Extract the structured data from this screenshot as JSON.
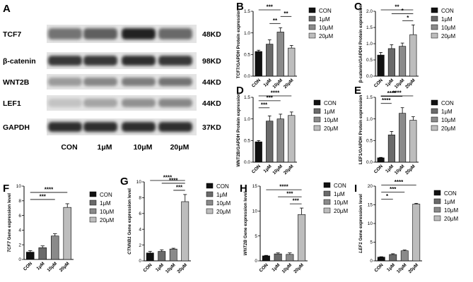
{
  "panel_a": {
    "letter": "A",
    "rows": [
      {
        "label": "TCF7",
        "size": "48KD",
        "intensity": [
          0.55,
          0.65,
          0.95,
          0.6
        ],
        "thickness": 16
      },
      {
        "label": "β-catenin",
        "size": "98KD",
        "intensity": [
          0.85,
          0.85,
          0.9,
          0.85
        ],
        "thickness": 14
      },
      {
        "label": "WNT2B",
        "size": "44KD",
        "intensity": [
          0.35,
          0.45,
          0.5,
          0.55
        ],
        "thickness": 12
      },
      {
        "label": "LEF1",
        "size": "44KD",
        "intensity": [
          0.15,
          0.3,
          0.4,
          0.45
        ],
        "thickness": 12
      },
      {
        "label": "GAPDH",
        "size": "37KD",
        "intensity": [
          0.9,
          0.9,
          0.9,
          0.9
        ],
        "thickness": 14
      }
    ],
    "lanes": [
      "CON",
      "1μM",
      "10μM",
      "20μM"
    ]
  },
  "legend": [
    "CON",
    "1μM",
    "10μM",
    "20μM"
  ],
  "colors": [
    "#111111",
    "#6a6a6a",
    "#8a8a8a",
    "#bdbdbd"
  ],
  "chart_data": [
    {
      "letter": "B",
      "type": "bar",
      "categories": [
        "CON",
        "1μM",
        "10μM",
        "20μM"
      ],
      "values": [
        0.57,
        0.74,
        1.02,
        0.65
      ],
      "errors": [
        0.03,
        0.1,
        0.1,
        0.06
      ],
      "ylabel": "TCF7/GAPDH Protein expression",
      "ylim": [
        0,
        1.5
      ],
      "yticks": [
        "0.0",
        "0.5",
        "1.0",
        "1.5"
      ],
      "sig": [
        {
          "from": 0,
          "to": 2,
          "label": "***"
        },
        {
          "from": 1,
          "to": 2,
          "label": "**"
        },
        {
          "from": 2,
          "to": 3,
          "label": "**"
        }
      ]
    },
    {
      "letter": "C",
      "type": "bar",
      "categories": [
        "CON",
        "1μM",
        "10μM",
        "20μM"
      ],
      "values": [
        0.65,
        0.85,
        0.92,
        1.28
      ],
      "errors": [
        0.08,
        0.12,
        0.1,
        0.3
      ],
      "ylabel": "β-catenin/GAPDH Protein expression",
      "ylim": [
        0,
        2.0
      ],
      "yticks": [
        "0.0",
        "0.5",
        "1.0",
        "1.5",
        "2.0"
      ],
      "sig": [
        {
          "from": 0,
          "to": 3,
          "label": "**"
        },
        {
          "from": 1,
          "to": 3,
          "label": "*"
        },
        {
          "from": 2,
          "to": 3,
          "label": "*"
        }
      ]
    },
    {
      "letter": "D",
      "type": "bar",
      "categories": [
        "CON",
        "1μM",
        "10μM",
        "20μM"
      ],
      "values": [
        0.47,
        0.95,
        1.0,
        1.08
      ],
      "errors": [
        0.03,
        0.12,
        0.11,
        0.08
      ],
      "ylabel": "WNT2B/GAPDH Protein expression",
      "ylim": [
        0,
        1.5
      ],
      "yticks": [
        "0.0",
        "0.5",
        "1.0",
        "1.5"
      ],
      "sig": [
        {
          "from": 0,
          "to": 1,
          "label": "***"
        },
        {
          "from": 0,
          "to": 2,
          "label": "***"
        },
        {
          "from": 0,
          "to": 3,
          "label": "****"
        }
      ]
    },
    {
      "letter": "E",
      "type": "bar",
      "categories": [
        "CON",
        "1μM",
        "10μM",
        "20μM"
      ],
      "values": [
        0.1,
        0.63,
        1.13,
        0.97
      ],
      "errors": [
        0.01,
        0.08,
        0.13,
        0.08
      ],
      "ylabel": "LEF1/GAPDH Protein expression",
      "ylim": [
        0,
        1.5
      ],
      "yticks": [
        "0.0",
        "0.5",
        "1.0",
        "1.5"
      ],
      "sig": [
        {
          "from": 0,
          "to": 1,
          "label": "****"
        },
        {
          "from": 0,
          "to": 2,
          "label": "****"
        },
        {
          "from": 0,
          "to": 3,
          "label": "****"
        }
      ]
    },
    {
      "letter": "F",
      "type": "bar",
      "categories": [
        "CON",
        "1μM",
        "10μM",
        "20μM"
      ],
      "values": [
        1.0,
        1.6,
        3.2,
        7.1
      ],
      "errors": [
        0.2,
        0.25,
        0.3,
        0.5
      ],
      "ylabel": "TCF7 Gene expression level",
      "ylabel_gene": "TCF7",
      "ylabel_rest": " Gene expression level",
      "ylim": [
        0,
        10
      ],
      "yticks": [
        "0",
        "2",
        "4",
        "6",
        "8",
        "10"
      ],
      "sig": [
        {
          "from": 0,
          "to": 2,
          "label": "***"
        },
        {
          "from": 0,
          "to": 3,
          "label": "****"
        }
      ]
    },
    {
      "letter": "G",
      "type": "bar",
      "categories": [
        "CON",
        "1μM",
        "10μM",
        "20μM"
      ],
      "values": [
        1.0,
        1.2,
        1.5,
        7.5
      ],
      "errors": [
        0.2,
        0.2,
        0.1,
        0.9
      ],
      "ylabel": "CTNNB1 Gene expression level",
      "ylabel_gene": "CTNNB1",
      "ylabel_rest": " Gene expression level",
      "ylim": [
        0,
        10
      ],
      "yticks": [
        "0",
        "2",
        "4",
        "6",
        "8",
        "10"
      ],
      "sig": [
        {
          "from": 0,
          "to": 3,
          "label": "****"
        },
        {
          "from": 1,
          "to": 3,
          "label": "****"
        },
        {
          "from": 2,
          "to": 3,
          "label": "***"
        }
      ]
    },
    {
      "letter": "H",
      "type": "bar",
      "categories": [
        "CON",
        "1μM",
        "10μM",
        "20μM"
      ],
      "values": [
        1.0,
        1.4,
        1.3,
        9.3
      ],
      "errors": [
        0.1,
        0.2,
        0.3,
        1.3
      ],
      "ylabel": "WNT2B Gene expression level",
      "ylabel_gene": "WNT2B",
      "ylabel_rest": " Gene expression level",
      "ylim": [
        0,
        15
      ],
      "yticks": [
        "0",
        "5",
        "10",
        "15"
      ],
      "sig": [
        {
          "from": 0,
          "to": 3,
          "label": "****"
        },
        {
          "from": 1,
          "to": 3,
          "label": "***"
        },
        {
          "from": 2,
          "to": 3,
          "label": "***"
        }
      ]
    },
    {
      "letter": "I",
      "type": "bar",
      "categories": [
        "CON",
        "1μM",
        "10μM",
        "20μM"
      ],
      "values": [
        1.0,
        1.7,
        2.7,
        15.2
      ],
      "errors": [
        0.1,
        0.2,
        0.2,
        0.2
      ],
      "ylabel": "LEF1 Gene expression level",
      "ylabel_gene": "LEF1",
      "ylabel_rest": " Gene expression level",
      "ylim": [
        0,
        20
      ],
      "yticks": [
        "0",
        "5",
        "10",
        "15",
        "20"
      ],
      "sig": [
        {
          "from": 0,
          "to": 1,
          "label": "*"
        },
        {
          "from": 0,
          "to": 2,
          "label": "***"
        },
        {
          "from": 0,
          "to": 3,
          "label": "****"
        }
      ]
    }
  ]
}
